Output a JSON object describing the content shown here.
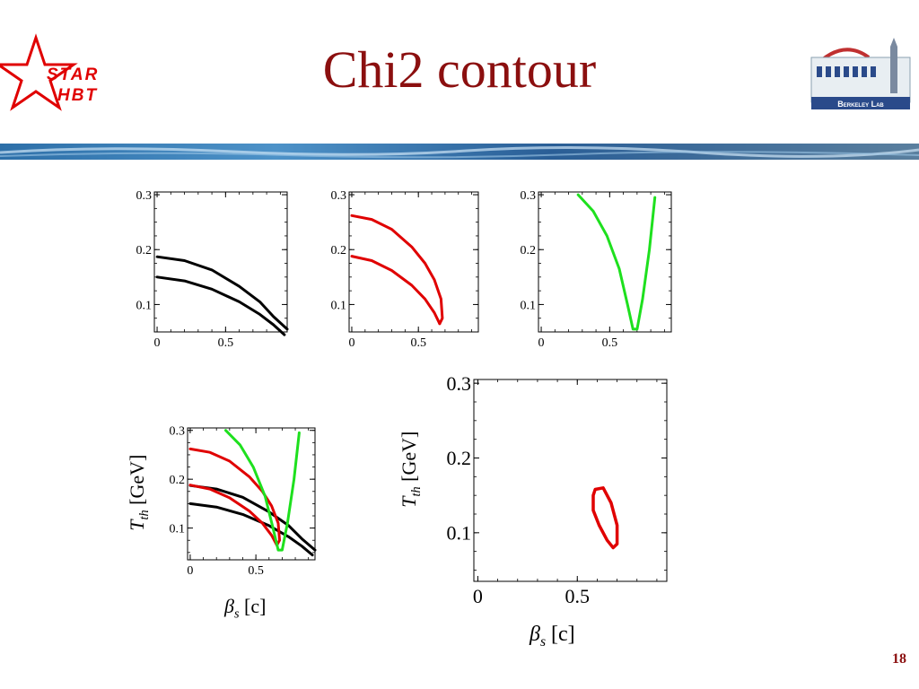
{
  "slide": {
    "title": "Chi2 contour",
    "page_number": "18",
    "logo_left": {
      "line1": "STAR",
      "line2": "HBT"
    },
    "logo_right": {
      "text": "Berkeley Lab"
    }
  },
  "colors": {
    "title": "#8b0f0f",
    "black": "#000000",
    "red": "#e00000",
    "green": "#1ee01e"
  },
  "axis_text": {
    "x": {
      "symbol": "β",
      "sub": "s",
      "unit": "[c]"
    },
    "y": {
      "symbol": "T",
      "sub": "th",
      "unit": "[GeV]"
    }
  },
  "chart_data": [
    {
      "type": "line",
      "xlim": [
        -0.02,
        0.95
      ],
      "ylim": [
        0.05,
        0.305
      ],
      "xticks": [
        "0",
        "0.5"
      ],
      "yticks": [
        "0.1",
        "0.2",
        "0.3"
      ],
      "series": [
        {
          "color": "#000000",
          "x": [
            0,
            0.2,
            0.4,
            0.6,
            0.75,
            0.85,
            0.95
          ],
          "y": [
            0.187,
            0.18,
            0.163,
            0.133,
            0.105,
            0.078,
            0.055
          ]
        },
        {
          "color": "#000000",
          "x": [
            0,
            0.2,
            0.4,
            0.6,
            0.75,
            0.85,
            0.93
          ],
          "y": [
            0.15,
            0.143,
            0.128,
            0.105,
            0.082,
            0.063,
            0.045
          ]
        }
      ]
    },
    {
      "type": "line",
      "xlim": [
        -0.02,
        0.95
      ],
      "ylim": [
        0.05,
        0.305
      ],
      "xticks": [
        "0",
        "0.5"
      ],
      "yticks": [
        "0.1",
        "0.2",
        "0.3"
      ],
      "series": [
        {
          "color": "#e00000",
          "x": [
            0,
            0.15,
            0.3,
            0.45,
            0.55,
            0.62,
            0.67,
            0.68,
            0.66
          ],
          "y": [
            0.262,
            0.255,
            0.237,
            0.205,
            0.175,
            0.145,
            0.11,
            0.075,
            0.065
          ]
        },
        {
          "color": "#e00000",
          "x": [
            0,
            0.15,
            0.3,
            0.45,
            0.55,
            0.62,
            0.66
          ],
          "y": [
            0.188,
            0.18,
            0.162,
            0.135,
            0.11,
            0.085,
            0.065
          ]
        }
      ]
    },
    {
      "type": "line",
      "xlim": [
        -0.02,
        0.95
      ],
      "ylim": [
        0.05,
        0.305
      ],
      "xticks": [
        "0",
        "0.5"
      ],
      "yticks": [
        "0.1",
        "0.2",
        "0.3"
      ],
      "series": [
        {
          "color": "#1ee01e",
          "x": [
            0.27,
            0.38,
            0.48,
            0.57,
            0.63,
            0.67,
            0.7,
            0.74,
            0.79,
            0.83
          ],
          "y": [
            0.3,
            0.27,
            0.225,
            0.165,
            0.1,
            0.055,
            0.055,
            0.11,
            0.2,
            0.295
          ]
        }
      ]
    },
    {
      "type": "line",
      "xlim": [
        -0.02,
        0.95
      ],
      "ylim": [
        0.035,
        0.305
      ],
      "xticks": [
        "0",
        "0.5"
      ],
      "yticks": [
        "0.1",
        "0.2",
        "0.3"
      ],
      "series": [
        {
          "color": "#000000",
          "x": [
            0,
            0.2,
            0.4,
            0.6,
            0.75,
            0.85,
            0.95
          ],
          "y": [
            0.187,
            0.18,
            0.163,
            0.133,
            0.105,
            0.078,
            0.055
          ]
        },
        {
          "color": "#000000",
          "x": [
            0,
            0.2,
            0.4,
            0.6,
            0.75,
            0.85,
            0.93
          ],
          "y": [
            0.15,
            0.143,
            0.128,
            0.105,
            0.082,
            0.063,
            0.045
          ]
        },
        {
          "color": "#e00000",
          "x": [
            0,
            0.15,
            0.3,
            0.45,
            0.55,
            0.62,
            0.67,
            0.68,
            0.66
          ],
          "y": [
            0.262,
            0.255,
            0.237,
            0.205,
            0.175,
            0.145,
            0.11,
            0.075,
            0.065
          ]
        },
        {
          "color": "#e00000",
          "x": [
            0,
            0.15,
            0.3,
            0.45,
            0.55,
            0.62,
            0.66
          ],
          "y": [
            0.188,
            0.18,
            0.162,
            0.135,
            0.11,
            0.085,
            0.065
          ]
        },
        {
          "color": "#1ee01e",
          "x": [
            0.27,
            0.38,
            0.48,
            0.57,
            0.63,
            0.67,
            0.7,
            0.74,
            0.79,
            0.83
          ],
          "y": [
            0.3,
            0.27,
            0.225,
            0.165,
            0.1,
            0.055,
            0.055,
            0.11,
            0.2,
            0.295
          ]
        }
      ]
    },
    {
      "type": "line",
      "xlim": [
        -0.02,
        0.95
      ],
      "ylim": [
        0.035,
        0.305
      ],
      "xticks": [
        "0",
        "0.5"
      ],
      "yticks": [
        "0.1",
        "0.2",
        "0.3"
      ],
      "series": [
        {
          "color": "#e00000",
          "closed": true,
          "x": [
            0.59,
            0.63,
            0.67,
            0.7,
            0.7,
            0.68,
            0.65,
            0.61,
            0.58,
            0.58
          ],
          "y": [
            0.158,
            0.16,
            0.14,
            0.11,
            0.085,
            0.08,
            0.09,
            0.11,
            0.13,
            0.15
          ]
        }
      ]
    }
  ]
}
